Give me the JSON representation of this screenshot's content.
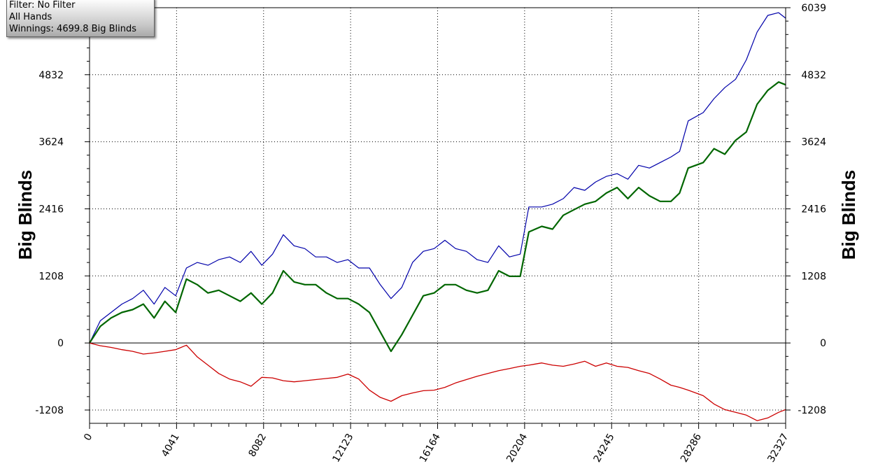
{
  "info_box": {
    "filter": "Filter: No Filter",
    "hands": "All Hands",
    "winnings": "Winnings: 4699.8 Big Blinds"
  },
  "chart_data": {
    "type": "line",
    "title": "",
    "xlabel": "",
    "ylabel": "Big Blinds",
    "ylabel_right": "Big Blinds",
    "xlim": [
      0,
      32327
    ],
    "ylim": [
      -1208,
      6039
    ],
    "x_ticks": [
      0,
      4041,
      8082,
      12123,
      16164,
      20204,
      24245,
      28286,
      32327
    ],
    "x_tick_labels": [
      "0",
      "4041",
      "8082",
      "12123",
      "16164",
      "20204",
      "24245",
      "28286",
      "32327"
    ],
    "y_ticks": [
      -1208,
      0,
      1208,
      2416,
      3624,
      4832,
      6039
    ],
    "y_tick_labels_left": [
      "-1208",
      "0",
      "1208",
      "2416",
      "3624",
      "4832",
      ""
    ],
    "y_tick_labels_right": [
      "-1208",
      "0",
      "1208",
      "2416",
      "3624",
      "4832",
      "6039"
    ],
    "grid": true,
    "series": [
      {
        "color": "#0000aa",
        "x": [
          0,
          500,
          1000,
          1500,
          2000,
          2500,
          3000,
          3500,
          4000,
          4500,
          5000,
          5500,
          6000,
          6500,
          7000,
          7500,
          8000,
          8500,
          9000,
          9500,
          10000,
          10500,
          11000,
          11500,
          12000,
          12500,
          13000,
          13500,
          14000,
          14500,
          15000,
          15500,
          16000,
          16500,
          17000,
          17500,
          18000,
          18500,
          19000,
          19500,
          20000,
          20400,
          21000,
          21500,
          22000,
          22500,
          23000,
          23500,
          24000,
          24500,
          25000,
          25500,
          26000,
          26500,
          27000,
          27400,
          27800,
          28500,
          29000,
          29500,
          30000,
          30500,
          31000,
          31500,
          32000,
          32327
        ],
        "y": [
          0,
          400,
          550,
          700,
          800,
          950,
          700,
          1000,
          850,
          1350,
          1450,
          1400,
          1500,
          1550,
          1450,
          1650,
          1400,
          1600,
          1950,
          1750,
          1700,
          1550,
          1550,
          1450,
          1500,
          1350,
          1350,
          1050,
          800,
          1000,
          1450,
          1650,
          1700,
          1850,
          1700,
          1650,
          1500,
          1450,
          1750,
          1550,
          1600,
          2450,
          2450,
          2500,
          2600,
          2800,
          2750,
          2900,
          3000,
          3050,
          2950,
          3200,
          3150,
          3250,
          3350,
          3450,
          4000,
          4150,
          4400,
          4600,
          4750,
          5100,
          5600,
          5900,
          5950,
          5850
        ]
      },
      {
        "color": "#006600",
        "x": [
          0,
          500,
          1000,
          1500,
          2000,
          2500,
          3000,
          3500,
          4000,
          4500,
          5000,
          5500,
          6000,
          6500,
          7000,
          7500,
          8000,
          8500,
          9000,
          9500,
          10000,
          10500,
          11000,
          11500,
          12000,
          12500,
          13000,
          13500,
          14000,
          14500,
          15000,
          15500,
          16000,
          16500,
          17000,
          17500,
          18000,
          18500,
          19000,
          19500,
          20000,
          20400,
          21000,
          21500,
          22000,
          22500,
          23000,
          23500,
          24000,
          24500,
          25000,
          25500,
          26000,
          26500,
          27000,
          27400,
          27800,
          28500,
          29000,
          29500,
          30000,
          30500,
          31000,
          31500,
          32000,
          32327
        ],
        "y": [
          0,
          300,
          450,
          550,
          600,
          700,
          450,
          750,
          550,
          1150,
          1050,
          900,
          950,
          850,
          750,
          900,
          700,
          900,
          1300,
          1100,
          1050,
          1050,
          900,
          800,
          800,
          700,
          550,
          200,
          -150,
          150,
          500,
          850,
          900,
          1050,
          1050,
          950,
          900,
          950,
          1300,
          1200,
          1200,
          2000,
          2100,
          2050,
          2300,
          2400,
          2500,
          2550,
          2700,
          2800,
          2600,
          2800,
          2650,
          2550,
          2550,
          2700,
          3150,
          3250,
          3500,
          3400,
          3650,
          3800,
          4300,
          4550,
          4700,
          4650
        ]
      },
      {
        "color": "#cc0000",
        "x": [
          0,
          500,
          1000,
          1500,
          2000,
          2500,
          3000,
          3500,
          4000,
          4500,
          5000,
          5500,
          6000,
          6500,
          7000,
          7500,
          8000,
          8500,
          9000,
          9500,
          10000,
          10500,
          11000,
          11500,
          12000,
          12500,
          13000,
          13500,
          14000,
          14500,
          15000,
          15500,
          16000,
          16500,
          17000,
          17500,
          18000,
          18500,
          19000,
          19500,
          20000,
          20400,
          21000,
          21500,
          22000,
          22500,
          23000,
          23500,
          24000,
          24500,
          25000,
          25500,
          26000,
          26500,
          27000,
          27400,
          27800,
          28500,
          29000,
          29500,
          30000,
          30500,
          31000,
          31500,
          32000,
          32327
        ],
        "y": [
          0,
          -50,
          -80,
          -120,
          -150,
          -200,
          -180,
          -150,
          -120,
          -40,
          -250,
          -400,
          -550,
          -650,
          -700,
          -780,
          -620,
          -630,
          -680,
          -700,
          -680,
          -660,
          -640,
          -620,
          -560,
          -650,
          -850,
          -980,
          -1050,
          -950,
          -900,
          -860,
          -850,
          -800,
          -720,
          -660,
          -600,
          -550,
          -500,
          -460,
          -420,
          -400,
          -360,
          -400,
          -420,
          -380,
          -330,
          -420,
          -360,
          -420,
          -440,
          -500,
          -550,
          -650,
          -760,
          -800,
          -850,
          -950,
          -1100,
          -1200,
          -1250,
          -1300,
          -1400,
          -1350,
          -1250,
          -1200
        ]
      }
    ]
  }
}
